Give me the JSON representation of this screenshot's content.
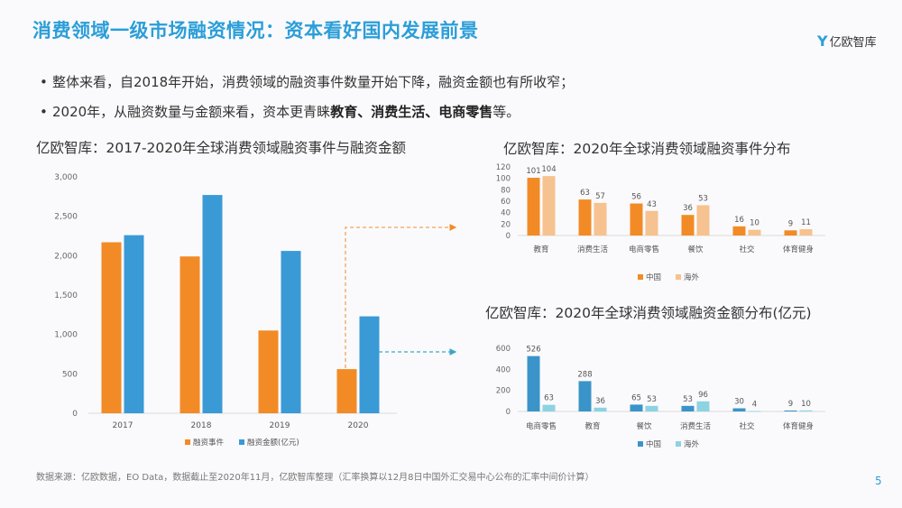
{
  "header": {
    "title": "消费领域一级市场融资情况：资本看好国内发展前景",
    "logo_text": "亿欧智库",
    "logo_mark": "Y"
  },
  "bullets": [
    {
      "bullet": "•",
      "text": "整体来看，自2018年开始，消费领域的融资事件数量开始下降，融资金额也有所收窄；"
    },
    {
      "bullet": "•",
      "prefix": "2020年，从融资数量与金额来看，资本更青睐",
      "bold1": "教育",
      "sep1": "、",
      "bold2": "消费生活",
      "sep2": "、",
      "bold3": "电商零售",
      "suffix": "等。"
    }
  ],
  "footer": {
    "source": "数据来源：亿欧数据，EO Data，数据截止至2020年11月，亿欧智库整理（汇率换算以12月8日中国外汇交易中心公布的汇率中间价计算）",
    "page_number": "5"
  },
  "colors": {
    "orange": "#f28b26",
    "light_orange": "#f6c28f",
    "blue": "#3a9ad6",
    "dark_blue": "#3a94c9",
    "light_teal": "#8dd3e2",
    "title_blue": "#2b9ed8"
  },
  "chart_data": [
    {
      "type": "bar",
      "title": "亿欧智库：2017-2020年全球消费领域融资事件与融资金额",
      "categories": [
        "2017",
        "2018",
        "2019",
        "2020"
      ],
      "series": [
        {
          "name": "融资事件",
          "values": [
            2170,
            1990,
            1050,
            560
          ]
        },
        {
          "name": "融资金额(亿元)",
          "values": [
            2260,
            2770,
            2060,
            1230
          ]
        }
      ],
      "yticks": [
        "0",
        "500",
        "1,000",
        "1,500",
        "2,000",
        "2,500",
        "3,000"
      ],
      "ylim": [
        0,
        3000
      ],
      "legend": "bottom",
      "grid": false
    },
    {
      "type": "bar",
      "title": "亿欧智库：2020年全球消费领域融资事件分布",
      "categories": [
        "教育",
        "消费生活",
        "电商零售",
        "餐饮",
        "社交",
        "体育健身"
      ],
      "series": [
        {
          "name": "中国",
          "values": [
            101,
            63,
            56,
            36,
            16,
            9
          ]
        },
        {
          "name": "海外",
          "values": [
            104,
            57,
            43,
            53,
            10,
            11
          ]
        }
      ],
      "yticks": [
        "0",
        "20",
        "40",
        "60",
        "80",
        "100",
        "120"
      ],
      "ylim": [
        0,
        120
      ],
      "legend": "bottom",
      "grid": false
    },
    {
      "type": "bar",
      "title": "亿欧智库：2020年全球消费领域融资金额分布(亿元)",
      "categories": [
        "电商零售",
        "教育",
        "餐饮",
        "消费生活",
        "社交",
        "体育健身"
      ],
      "series": [
        {
          "name": "中国",
          "values": [
            526,
            288,
            65,
            53,
            30,
            9
          ]
        },
        {
          "name": "海外",
          "values": [
            63,
            36,
            53,
            96,
            4,
            10
          ]
        }
      ],
      "yticks": [
        "0",
        "200",
        "400",
        "600"
      ],
      "ylim": [
        0,
        600
      ],
      "legend": "bottom",
      "grid": false
    }
  ]
}
